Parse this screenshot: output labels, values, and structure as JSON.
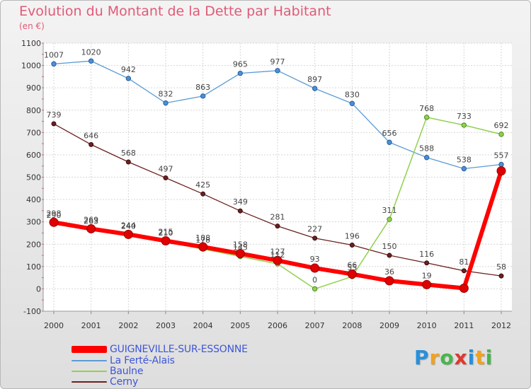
{
  "title": "Evolution du Montant de la Dette par Habitant",
  "subtitle": "(en €)",
  "logo": {
    "text": "Proxiti"
  },
  "chart_data": {
    "type": "line",
    "title": "Evolution du Montant de la Dette par Habitant",
    "ylabel": "(en €)",
    "x": [
      "2000",
      "2001",
      "2002",
      "2003",
      "2004",
      "2005",
      "2006",
      "2007",
      "2008",
      "2009",
      "2010",
      "2011",
      "2012"
    ],
    "ylim": [
      -100,
      1100
    ],
    "yticks": [
      -100,
      0,
      100,
      200,
      300,
      400,
      500,
      600,
      700,
      800,
      900,
      1000,
      1100
    ],
    "grid": true,
    "legend_position": "bottom-left",
    "series": [
      {
        "name": "GUIGNEVILLE-SUR-ESSONNE",
        "color": "#ff0000",
        "values": [
          298,
          269,
          244,
          215,
          188,
          158,
          127,
          93,
          66,
          36,
          19,
          3,
          528
        ],
        "labels": [
          "298",
          "269",
          "244",
          "215",
          "188",
          "158",
          "127",
          "93",
          "66",
          "36",
          "19",
          "",
          ""
        ]
      },
      {
        "name": "La Ferté-Alais",
        "color": "#5b9bd5",
        "values": [
          1007,
          1020,
          942,
          832,
          863,
          965,
          977,
          897,
          830,
          656,
          588,
          538,
          557
        ],
        "labels": [
          "1007",
          "1020",
          "942",
          "832",
          "863",
          "965",
          "977",
          "897",
          "830",
          "656",
          "588",
          "538",
          "557"
        ]
      },
      {
        "name": "Baulne",
        "color": "#92d050",
        "values": [
          290,
          263,
          240,
          210,
          178,
          145,
          112,
          0,
          55,
          311,
          768,
          733,
          692
        ],
        "labels": [
          "290",
          "263",
          "240",
          "210",
          "178",
          "145",
          "112",
          "0",
          "55",
          "311",
          "768",
          "733",
          "692"
        ]
      },
      {
        "name": "Cerny",
        "color": "#6b2020",
        "values": [
          739,
          646,
          568,
          497,
          425,
          349,
          281,
          227,
          196,
          150,
          116,
          81,
          58
        ],
        "labels": [
          "739",
          "646",
          "568",
          "497",
          "425",
          "349",
          "281",
          "227",
          "196",
          "150",
          "116",
          "81",
          "58"
        ]
      }
    ]
  }
}
